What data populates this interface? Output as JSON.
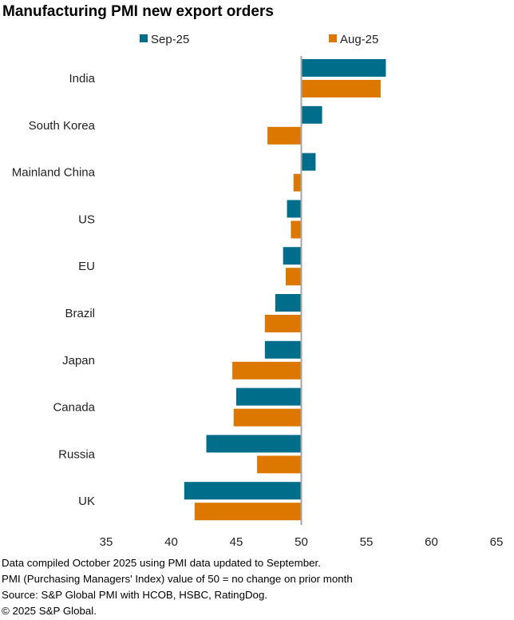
{
  "chart_data": {
    "type": "bar",
    "orientation": "horizontal",
    "title": "Manufacturing PMI new export orders",
    "categories": [
      "India",
      "South Korea",
      "Mainland China",
      "US",
      "EU",
      "Brazil",
      "Japan",
      "Canada",
      "Russia",
      "UK"
    ],
    "series": [
      {
        "name": "Sep-25",
        "color": "#006E8A",
        "values": [
          56.5,
          51.6,
          51.1,
          48.9,
          48.6,
          48.0,
          47.2,
          45.0,
          42.7,
          41.0
        ]
      },
      {
        "name": "Aug-25",
        "color": "#DC7800",
        "values": [
          56.1,
          47.4,
          49.4,
          49.2,
          48.8,
          47.2,
          44.7,
          44.8,
          46.6,
          41.8
        ]
      }
    ],
    "baseline": 50,
    "xlim": [
      35,
      65
    ],
    "xticks": [
      "35",
      "40",
      "45",
      "50",
      "55",
      "60",
      "65"
    ],
    "legend": "top",
    "xlabel": "",
    "ylabel": ""
  },
  "notes": [
    "Data compiled October 2025 using PMI data updated to September.",
    "PMI (Purchasing Managers' Index) value of 50 = no change on prior month",
    "Source: S&P Global PMI with HCOB, HSBC, RatingDog.",
    "© 2025 S&P Global."
  ]
}
